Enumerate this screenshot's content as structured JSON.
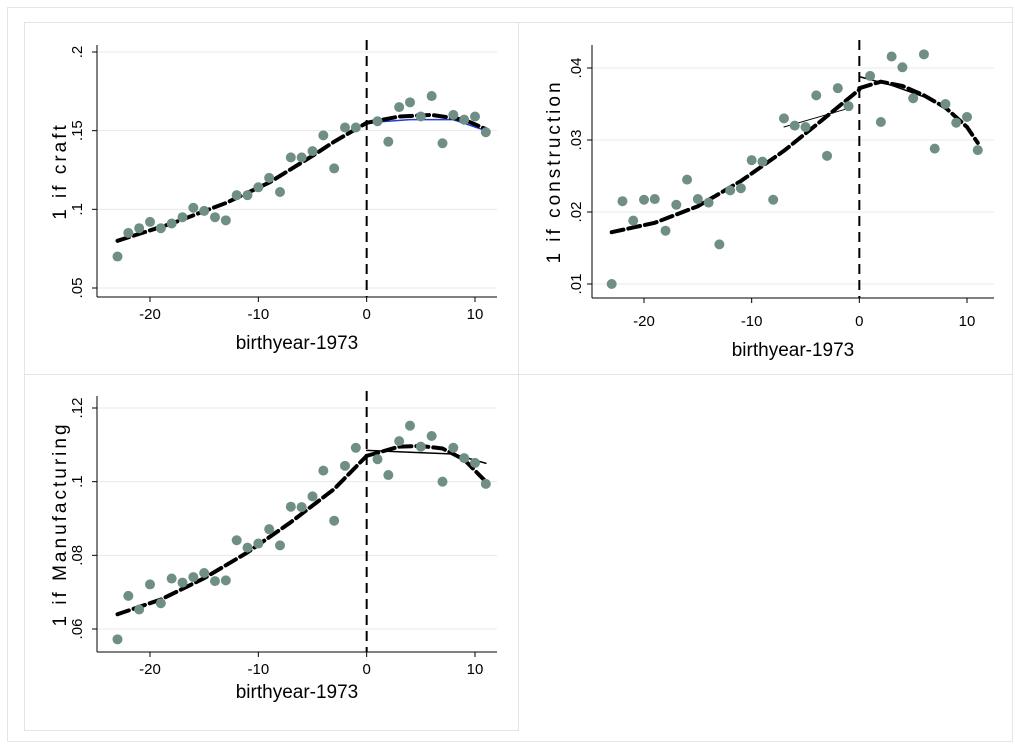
{
  "chart_data": [
    {
      "type": "scatter",
      "ylabel": "1 if craft",
      "xlabel": "birthyear-1973",
      "x_ticks": [
        -20,
        -10,
        0,
        10
      ],
      "x_tick_labels": [
        "-20",
        "-10",
        "0",
        "10"
      ],
      "y_ticks": [
        0.05,
        0.1,
        0.15,
        0.2
      ],
      "y_tick_labels": [
        ".05",
        ".1",
        ".15",
        ".2"
      ],
      "xlim": [
        -24,
        12
      ],
      "ylim": [
        0.05,
        0.2
      ],
      "cutoff_x": 0,
      "points": [
        [
          -23,
          0.07
        ],
        [
          -22,
          0.085
        ],
        [
          -21,
          0.088
        ],
        [
          -20,
          0.092
        ],
        [
          -19,
          0.088
        ],
        [
          -18,
          0.091
        ],
        [
          -17,
          0.095
        ],
        [
          -16,
          0.101
        ],
        [
          -15,
          0.099
        ],
        [
          -14,
          0.095
        ],
        [
          -13,
          0.093
        ],
        [
          -12,
          0.109
        ],
        [
          -11,
          0.109
        ],
        [
          -10,
          0.114
        ],
        [
          -9,
          0.12
        ],
        [
          -8,
          0.111
        ],
        [
          -7,
          0.133
        ],
        [
          -6,
          0.133
        ],
        [
          -5,
          0.137
        ],
        [
          -4,
          0.147
        ],
        [
          -3,
          0.126
        ],
        [
          -2,
          0.152
        ],
        [
          -1,
          0.152
        ],
        [
          1,
          0.156
        ],
        [
          2,
          0.143
        ],
        [
          3,
          0.165
        ],
        [
          4,
          0.168
        ],
        [
          5,
          0.159
        ],
        [
          6,
          0.172
        ],
        [
          7,
          0.142
        ],
        [
          8,
          0.16
        ],
        [
          9,
          0.157
        ],
        [
          10,
          0.159
        ],
        [
          11,
          0.149
        ]
      ],
      "fit_left": [
        [
          -23,
          0.08
        ],
        [
          -18,
          0.091
        ],
        [
          -13,
          0.104
        ],
        [
          -9,
          0.117
        ],
        [
          -5,
          0.134
        ],
        [
          -3,
          0.143
        ],
        [
          0,
          0.155
        ]
      ],
      "fit_right": [
        [
          0,
          0.155
        ],
        [
          3,
          0.159
        ],
        [
          6,
          0.16
        ],
        [
          9,
          0.157
        ],
        [
          11,
          0.151
        ]
      ],
      "thin_left": [],
      "thin_right": [
        [
          0,
          0.155
        ],
        [
          4,
          0.157
        ],
        [
          8,
          0.157
        ],
        [
          11,
          0.15
        ]
      ],
      "thin_right_color": "#1f3fd1"
    },
    {
      "type": "scatter",
      "ylabel": "1 if construction",
      "xlabel": "birthyear-1973",
      "x_ticks": [
        -20,
        -10,
        0,
        10
      ],
      "x_tick_labels": [
        "-20",
        "-10",
        "0",
        "10"
      ],
      "y_ticks": [
        0.01,
        0.02,
        0.03,
        0.04
      ],
      "y_tick_labels": [
        ".01",
        ".02",
        ".03",
        ".04"
      ],
      "xlim": [
        -24,
        12
      ],
      "ylim": [
        0.01,
        0.04
      ],
      "cutoff_x": 0,
      "points": [
        [
          -23,
          0.01
        ],
        [
          -22,
          0.0215
        ],
        [
          -21,
          0.0188
        ],
        [
          -20,
          0.0217
        ],
        [
          -19,
          0.0218
        ],
        [
          -18,
          0.0174
        ],
        [
          -17,
          0.021
        ],
        [
          -16,
          0.0245
        ],
        [
          -15,
          0.0218
        ],
        [
          -14,
          0.0213
        ],
        [
          -13,
          0.0155
        ],
        [
          -12,
          0.023
        ],
        [
          -11,
          0.0233
        ],
        [
          -10,
          0.0272
        ],
        [
          -9,
          0.027
        ],
        [
          -8,
          0.0217
        ],
        [
          -7,
          0.033
        ],
        [
          -6,
          0.032
        ],
        [
          -5,
          0.0318
        ],
        [
          -4,
          0.0362
        ],
        [
          -3,
          0.0278
        ],
        [
          -2,
          0.0372
        ],
        [
          -1,
          0.0347
        ],
        [
          1,
          0.0389
        ],
        [
          2,
          0.0325
        ],
        [
          3,
          0.0416
        ],
        [
          4,
          0.0401
        ],
        [
          5,
          0.0358
        ],
        [
          6,
          0.0419
        ],
        [
          7,
          0.0288
        ],
        [
          8,
          0.035
        ],
        [
          9,
          0.0324
        ],
        [
          10,
          0.0332
        ],
        [
          11,
          0.0286
        ]
      ],
      "fit_left": [
        [
          -23,
          0.0172
        ],
        [
          -19,
          0.0185
        ],
        [
          -15,
          0.0208
        ],
        [
          -11,
          0.0243
        ],
        [
          -7,
          0.0285
        ],
        [
          -4,
          0.0321
        ],
        [
          0,
          0.037
        ]
      ],
      "fit_right": [
        [
          0,
          0.0372
        ],
        [
          2,
          0.0381
        ],
        [
          4,
          0.0375
        ],
        [
          6,
          0.0362
        ],
        [
          8,
          0.0345
        ],
        [
          10,
          0.0318
        ],
        [
          11,
          0.0296
        ]
      ],
      "thin_left": [
        [
          -7,
          0.0318
        ],
        [
          -4,
          0.0331
        ],
        [
          -1,
          0.0344
        ]
      ],
      "thin_right": [
        [
          0,
          0.0388
        ],
        [
          3,
          0.0376
        ],
        [
          6,
          0.036
        ]
      ],
      "thin_right_color": "#000000"
    },
    {
      "type": "scatter",
      "ylabel": "1 if Manufacturing",
      "xlabel": "birthyear-1973",
      "x_ticks": [
        -20,
        -10,
        0,
        10
      ],
      "x_tick_labels": [
        "-20",
        "-10",
        "0",
        "10"
      ],
      "y_ticks": [
        0.06,
        0.08,
        0.1,
        0.12
      ],
      "y_tick_labels": [
        ".06",
        ".08",
        ".1",
        ".12"
      ],
      "xlim": [
        -24,
        12
      ],
      "ylim": [
        0.06,
        0.12
      ],
      "cutoff_x": 0,
      "points": [
        [
          -23,
          0.0572
        ],
        [
          -22,
          0.069
        ],
        [
          -21,
          0.0653
        ],
        [
          -20,
          0.0721
        ],
        [
          -19,
          0.067
        ],
        [
          -18,
          0.0737
        ],
        [
          -17,
          0.0726
        ],
        [
          -16,
          0.0741
        ],
        [
          -15,
          0.0752
        ],
        [
          -14,
          0.073
        ],
        [
          -13,
          0.0732
        ],
        [
          -12,
          0.0841
        ],
        [
          -11,
          0.0821
        ],
        [
          -10,
          0.0832
        ],
        [
          -9,
          0.0871
        ],
        [
          -8,
          0.0827
        ],
        [
          -7,
          0.0932
        ],
        [
          -6,
          0.0931
        ],
        [
          -5,
          0.096
        ],
        [
          -4,
          0.103
        ],
        [
          -3,
          0.0894
        ],
        [
          -2,
          0.1043
        ],
        [
          -1,
          0.1092
        ],
        [
          1,
          0.1061
        ],
        [
          2,
          0.1018
        ],
        [
          3,
          0.111
        ],
        [
          4,
          0.1152
        ],
        [
          5,
          0.1095
        ],
        [
          6,
          0.1124
        ],
        [
          7,
          0.1
        ],
        [
          8,
          0.1092
        ],
        [
          9,
          0.1064
        ],
        [
          10,
          0.1051
        ],
        [
          11,
          0.0994
        ]
      ],
      "fit_left": [
        [
          -23,
          0.064
        ],
        [
          -19,
          0.068
        ],
        [
          -15,
          0.0738
        ],
        [
          -11,
          0.0808
        ],
        [
          -7,
          0.089
        ],
        [
          -3,
          0.098
        ],
        [
          0,
          0.107
        ]
      ],
      "fit_right": [
        [
          0,
          0.107
        ],
        [
          3,
          0.1095
        ],
        [
          5,
          0.1097
        ],
        [
          7,
          0.109
        ],
        [
          9,
          0.106
        ],
        [
          11,
          0.1
        ]
      ],
      "thin_left": [],
      "thin_right": [
        [
          0,
          0.1085
        ],
        [
          4,
          0.108
        ],
        [
          8,
          0.1075
        ],
        [
          11,
          0.105
        ]
      ],
      "thin_right_color": "#000000"
    }
  ],
  "colors": {
    "marker": "#6f8f86",
    "line": "#000000",
    "grid": "#e8e8e8"
  }
}
